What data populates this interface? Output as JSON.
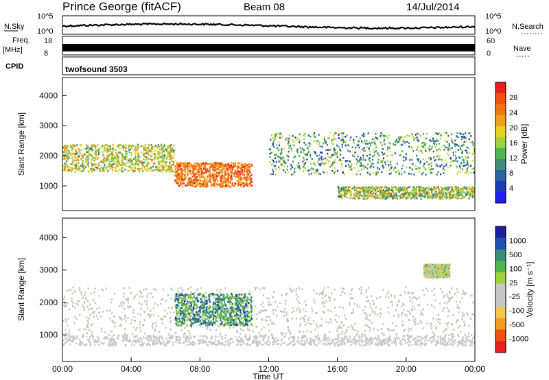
{
  "header": {
    "station": "Prince George (fitACF)",
    "beam": "Beam 08",
    "date": "14/Jul/2014"
  },
  "noise_panel": {
    "left_label": "N.Sky",
    "left_ticks": [
      "10^5",
      "10^0"
    ],
    "right_label": "N.Search",
    "right_ticks": [
      "10^5",
      "10^0"
    ]
  },
  "freq_panel": {
    "left_label": "Freq.",
    "left_unit": "[MHz]",
    "left_ticks": [
      "18",
      "8"
    ],
    "right_label": "Nave",
    "right_ticks": [
      "60",
      "0"
    ]
  },
  "cpid_panel": {
    "label": "CPID",
    "program": "twofsound 3503"
  },
  "colors": {
    "power_scale": [
      "#1e1ef0",
      "#1e3cb4",
      "#2864a0",
      "#3c8c78",
      "#50b450",
      "#a0d23c",
      "#e6d21e",
      "#f0a01e",
      "#f07814",
      "#f05014",
      "#e61e1e"
    ],
    "velocity_scale": [
      "#e61e1e",
      "#f05014",
      "#f0a01e",
      "#f0c850",
      "#c8c8c8",
      "#c8c8c8",
      "#a0d23c",
      "#50b450",
      "#3c8c78",
      "#1e50b4",
      "#1e1ea0"
    ],
    "ground_scatter": "#c4c4bc"
  },
  "chart_data": [
    {
      "type": "heatmap",
      "panel": "power",
      "ylabel": "Slant Range [km]",
      "xlim": [
        "00:00",
        "00:00"
      ],
      "ylim": [
        180,
        4600
      ],
      "yticks": [
        1000,
        2000,
        3000,
        4000
      ],
      "colorbar": {
        "label": "Power [dB]",
        "range": [
          0,
          32
        ],
        "ticks": [
          "28",
          "24",
          "20",
          "16",
          "12",
          "8",
          "4"
        ]
      },
      "features": [
        {
          "range_km": [
            1500,
            2400
          ],
          "time_h": [
            0,
            6.5
          ],
          "power_db": [
            10,
            24
          ]
        },
        {
          "range_km": [
            1000,
            1800
          ],
          "time_h": [
            6.5,
            11
          ],
          "power_db": [
            20,
            30
          ]
        },
        {
          "range_km": [
            1400,
            2800
          ],
          "time_h": [
            12,
            24
          ],
          "power_db": [
            4,
            20
          ]
        },
        {
          "range_km": [
            600,
            1000
          ],
          "time_h": [
            16,
            24
          ],
          "power_db": [
            8,
            24
          ]
        }
      ]
    },
    {
      "type": "heatmap",
      "panel": "velocity",
      "ylabel": "Slant Range [km]",
      "xlabel": "Time UT",
      "xlim": [
        "00:00",
        "00:00"
      ],
      "ylim": [
        180,
        4600
      ],
      "yticks": [
        1000,
        2000,
        3000,
        4000
      ],
      "xticks": [
        "00:00",
        "04:00",
        "08:00",
        "12:00",
        "16:00",
        "20:00",
        "00:00"
      ],
      "colorbar": {
        "label": "Velocity [m s⁻¹]",
        "ticks": [
          "1000",
          "500",
          "100",
          "25",
          "-25",
          "-100",
          "-500",
          "-1000"
        ]
      },
      "features": [
        {
          "range_km": [
            1000,
            2500
          ],
          "time_h": [
            0,
            24
          ],
          "kind": "ground scatter"
        },
        {
          "range_km": [
            1300,
            2300
          ],
          "time_h": [
            6.5,
            11
          ],
          "velocity_ms": [
            100,
            1000
          ]
        },
        {
          "range_km": [
            2800,
            3200
          ],
          "time_h": [
            21,
            22.5
          ],
          "velocity_ms": [
            -500,
            500
          ]
        },
        {
          "range_km": [
            700,
            1000
          ],
          "time_h": [
            0,
            24
          ],
          "velocity_ms": [
            -100,
            -25
          ]
        }
      ]
    }
  ]
}
